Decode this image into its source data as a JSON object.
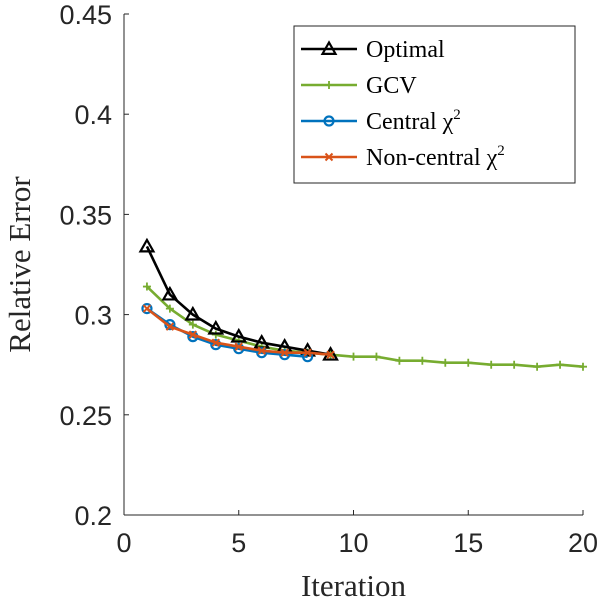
{
  "chart_data": {
    "type": "line",
    "title": "",
    "xlabel": "Iteration",
    "ylabel": "Relative Error",
    "xlim": [
      0,
      20
    ],
    "ylim": [
      0.2,
      0.45
    ],
    "xticks": [
      0,
      5,
      10,
      15,
      20
    ],
    "xtick_labels": [
      "0",
      "5",
      "10",
      "15",
      "20"
    ],
    "yticks": [
      0.2,
      0.25,
      0.3,
      0.35,
      0.4,
      0.45
    ],
    "ytick_labels": [
      "0.2",
      "0.25",
      "0.3",
      "0.35",
      "0.4",
      "0.45"
    ],
    "grid": false,
    "legend_position": "top-right",
    "series": [
      {
        "name": "Optimal",
        "legend_text": "Optimal",
        "legend_sup": "",
        "color": "#000000",
        "marker": "triangle",
        "x": [
          1,
          2,
          3,
          4,
          5,
          6,
          7,
          8,
          9
        ],
        "y": [
          0.334,
          0.31,
          0.3,
          0.293,
          0.289,
          0.286,
          0.284,
          0.282,
          0.28
        ]
      },
      {
        "name": "GCV",
        "legend_text": "GCV",
        "legend_sup": "",
        "color": "#77AC30",
        "marker": "plus",
        "x": [
          1,
          2,
          3,
          4,
          5,
          6,
          7,
          8,
          9,
          10,
          11,
          12,
          13,
          14,
          15,
          16,
          17,
          18,
          19,
          20
        ],
        "y": [
          0.314,
          0.303,
          0.295,
          0.29,
          0.287,
          0.284,
          0.282,
          0.281,
          0.28,
          0.279,
          0.279,
          0.277,
          0.277,
          0.276,
          0.276,
          0.275,
          0.275,
          0.274,
          0.275,
          0.274
        ]
      },
      {
        "name": "Central χ2",
        "legend_text": "Central χ",
        "legend_sup": "2",
        "color": "#0072BD",
        "marker": "circle",
        "x": [
          1,
          2,
          3,
          4,
          5,
          6,
          7,
          8
        ],
        "y": [
          0.303,
          0.295,
          0.289,
          0.285,
          0.283,
          0.281,
          0.28,
          0.279
        ]
      },
      {
        "name": "Non-central χ2",
        "legend_text": "Non-central χ",
        "legend_sup": "2",
        "color": "#D95319",
        "marker": "x",
        "x": [
          1,
          2,
          3,
          4,
          5,
          6,
          7,
          8,
          9
        ],
        "y": [
          0.303,
          0.294,
          0.29,
          0.286,
          0.284,
          0.282,
          0.281,
          0.281,
          0.28
        ]
      }
    ]
  }
}
